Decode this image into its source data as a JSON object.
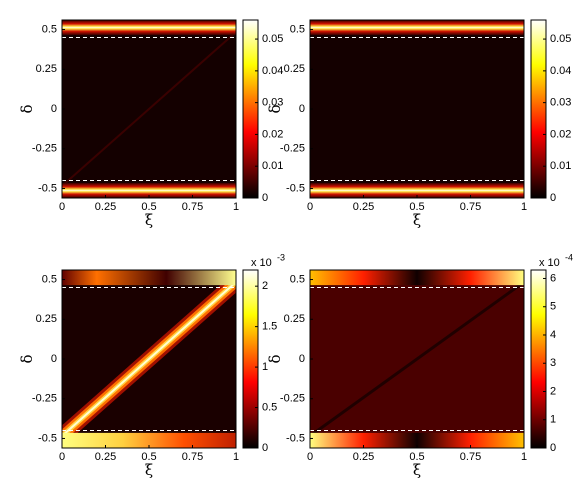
{
  "chart_data": [
    {
      "type": "heatmap",
      "colormap": "hot",
      "xlabel": "ξ",
      "ylabel": "δ",
      "xlim": [
        0,
        1
      ],
      "ylim": [
        -0.56,
        0.56
      ],
      "xticks": [
        0,
        0.25,
        0.5,
        0.75,
        1
      ],
      "yticks": [
        -0.5,
        -0.25,
        0,
        0.25,
        0.5
      ],
      "hlines": [
        -0.45,
        0.45
      ],
      "clim": [
        0,
        0.056
      ],
      "cticks": [
        0,
        0.01,
        0.02,
        0.03,
        0.04,
        0.05
      ]
    },
    {
      "type": "heatmap",
      "colormap": "hot",
      "xlabel": "ξ",
      "ylabel": "δ",
      "xlim": [
        0,
        1
      ],
      "ylim": [
        -0.56,
        0.56
      ],
      "xticks": [
        0,
        0.25,
        0.5,
        0.75,
        1
      ],
      "yticks": [
        -0.5,
        -0.25,
        0,
        0.25,
        0.5
      ],
      "hlines": [
        -0.45,
        0.45
      ],
      "clim": [
        0,
        0.056
      ],
      "cticks": [
        0,
        0.01,
        0.02,
        0.03,
        0.04,
        0.05
      ]
    },
    {
      "type": "heatmap",
      "colormap": "hot",
      "xlabel": "ξ",
      "ylabel": "δ",
      "xlim": [
        0,
        1
      ],
      "ylim": [
        -0.56,
        0.56
      ],
      "xticks": [
        0,
        0.25,
        0.5,
        0.75,
        1
      ],
      "yticks": [
        -0.5,
        -0.25,
        0,
        0.25,
        0.5
      ],
      "hlines": [
        -0.45,
        0.45
      ],
      "clim": [
        0,
        2.2
      ],
      "cticks": [
        0,
        0.5,
        1,
        1.5,
        2
      ],
      "colorbar_scale": "x 10",
      "colorbar_exponent": "-3"
    },
    {
      "type": "heatmap",
      "colormap": "hot",
      "xlabel": "ξ",
      "ylabel": "δ",
      "xlim": [
        0,
        1
      ],
      "ylim": [
        -0.56,
        0.56
      ],
      "xticks": [
        0,
        0.25,
        0.5,
        0.75,
        1
      ],
      "yticks": [
        -0.5,
        -0.25,
        0,
        0.25,
        0.5
      ],
      "hlines": [
        -0.45,
        0.45
      ],
      "clim": [
        0,
        6.3
      ],
      "cticks": [
        0,
        1,
        2,
        3,
        4,
        5,
        6
      ],
      "colorbar_scale": "x 10",
      "colorbar_exponent": "-4"
    }
  ]
}
